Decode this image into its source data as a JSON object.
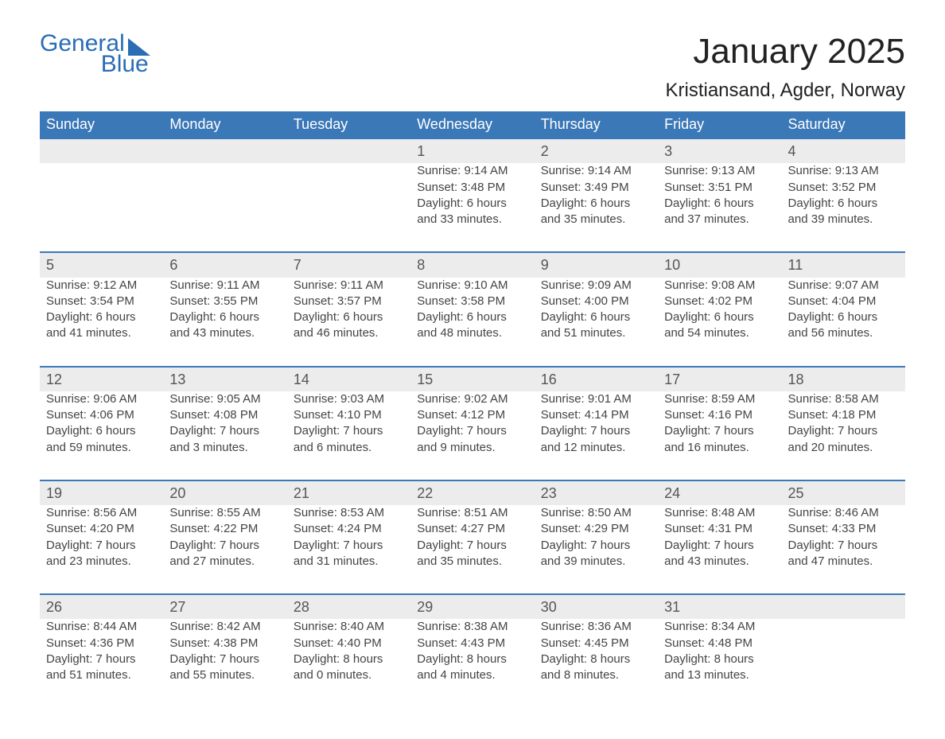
{
  "brand": {
    "name_part1": "General",
    "name_part2": "Blue",
    "brand_color": "#2a6db5"
  },
  "title": "January 2025",
  "location": "Kristiansand, Agder, Norway",
  "colors": {
    "header_bg": "#3b78b8",
    "header_text": "#ffffff",
    "daynum_bg": "#ececec",
    "rule": "#3b78b8",
    "body_text": "#444444",
    "page_bg": "#ffffff"
  },
  "day_headers": [
    "Sunday",
    "Monday",
    "Tuesday",
    "Wednesday",
    "Thursday",
    "Friday",
    "Saturday"
  ],
  "weeks": [
    [
      null,
      null,
      null,
      {
        "n": "1",
        "sunrise": "Sunrise: 9:14 AM",
        "sunset": "Sunset: 3:48 PM",
        "dl1": "Daylight: 6 hours",
        "dl2": "and 33 minutes."
      },
      {
        "n": "2",
        "sunrise": "Sunrise: 9:14 AM",
        "sunset": "Sunset: 3:49 PM",
        "dl1": "Daylight: 6 hours",
        "dl2": "and 35 minutes."
      },
      {
        "n": "3",
        "sunrise": "Sunrise: 9:13 AM",
        "sunset": "Sunset: 3:51 PM",
        "dl1": "Daylight: 6 hours",
        "dl2": "and 37 minutes."
      },
      {
        "n": "4",
        "sunrise": "Sunrise: 9:13 AM",
        "sunset": "Sunset: 3:52 PM",
        "dl1": "Daylight: 6 hours",
        "dl2": "and 39 minutes."
      }
    ],
    [
      {
        "n": "5",
        "sunrise": "Sunrise: 9:12 AM",
        "sunset": "Sunset: 3:54 PM",
        "dl1": "Daylight: 6 hours",
        "dl2": "and 41 minutes."
      },
      {
        "n": "6",
        "sunrise": "Sunrise: 9:11 AM",
        "sunset": "Sunset: 3:55 PM",
        "dl1": "Daylight: 6 hours",
        "dl2": "and 43 minutes."
      },
      {
        "n": "7",
        "sunrise": "Sunrise: 9:11 AM",
        "sunset": "Sunset: 3:57 PM",
        "dl1": "Daylight: 6 hours",
        "dl2": "and 46 minutes."
      },
      {
        "n": "8",
        "sunrise": "Sunrise: 9:10 AM",
        "sunset": "Sunset: 3:58 PM",
        "dl1": "Daylight: 6 hours",
        "dl2": "and 48 minutes."
      },
      {
        "n": "9",
        "sunrise": "Sunrise: 9:09 AM",
        "sunset": "Sunset: 4:00 PM",
        "dl1": "Daylight: 6 hours",
        "dl2": "and 51 minutes."
      },
      {
        "n": "10",
        "sunrise": "Sunrise: 9:08 AM",
        "sunset": "Sunset: 4:02 PM",
        "dl1": "Daylight: 6 hours",
        "dl2": "and 54 minutes."
      },
      {
        "n": "11",
        "sunrise": "Sunrise: 9:07 AM",
        "sunset": "Sunset: 4:04 PM",
        "dl1": "Daylight: 6 hours",
        "dl2": "and 56 minutes."
      }
    ],
    [
      {
        "n": "12",
        "sunrise": "Sunrise: 9:06 AM",
        "sunset": "Sunset: 4:06 PM",
        "dl1": "Daylight: 6 hours",
        "dl2": "and 59 minutes."
      },
      {
        "n": "13",
        "sunrise": "Sunrise: 9:05 AM",
        "sunset": "Sunset: 4:08 PM",
        "dl1": "Daylight: 7 hours",
        "dl2": "and 3 minutes."
      },
      {
        "n": "14",
        "sunrise": "Sunrise: 9:03 AM",
        "sunset": "Sunset: 4:10 PM",
        "dl1": "Daylight: 7 hours",
        "dl2": "and 6 minutes."
      },
      {
        "n": "15",
        "sunrise": "Sunrise: 9:02 AM",
        "sunset": "Sunset: 4:12 PM",
        "dl1": "Daylight: 7 hours",
        "dl2": "and 9 minutes."
      },
      {
        "n": "16",
        "sunrise": "Sunrise: 9:01 AM",
        "sunset": "Sunset: 4:14 PM",
        "dl1": "Daylight: 7 hours",
        "dl2": "and 12 minutes."
      },
      {
        "n": "17",
        "sunrise": "Sunrise: 8:59 AM",
        "sunset": "Sunset: 4:16 PM",
        "dl1": "Daylight: 7 hours",
        "dl2": "and 16 minutes."
      },
      {
        "n": "18",
        "sunrise": "Sunrise: 8:58 AM",
        "sunset": "Sunset: 4:18 PM",
        "dl1": "Daylight: 7 hours",
        "dl2": "and 20 minutes."
      }
    ],
    [
      {
        "n": "19",
        "sunrise": "Sunrise: 8:56 AM",
        "sunset": "Sunset: 4:20 PM",
        "dl1": "Daylight: 7 hours",
        "dl2": "and 23 minutes."
      },
      {
        "n": "20",
        "sunrise": "Sunrise: 8:55 AM",
        "sunset": "Sunset: 4:22 PM",
        "dl1": "Daylight: 7 hours",
        "dl2": "and 27 minutes."
      },
      {
        "n": "21",
        "sunrise": "Sunrise: 8:53 AM",
        "sunset": "Sunset: 4:24 PM",
        "dl1": "Daylight: 7 hours",
        "dl2": "and 31 minutes."
      },
      {
        "n": "22",
        "sunrise": "Sunrise: 8:51 AM",
        "sunset": "Sunset: 4:27 PM",
        "dl1": "Daylight: 7 hours",
        "dl2": "and 35 minutes."
      },
      {
        "n": "23",
        "sunrise": "Sunrise: 8:50 AM",
        "sunset": "Sunset: 4:29 PM",
        "dl1": "Daylight: 7 hours",
        "dl2": "and 39 minutes."
      },
      {
        "n": "24",
        "sunrise": "Sunrise: 8:48 AM",
        "sunset": "Sunset: 4:31 PM",
        "dl1": "Daylight: 7 hours",
        "dl2": "and 43 minutes."
      },
      {
        "n": "25",
        "sunrise": "Sunrise: 8:46 AM",
        "sunset": "Sunset: 4:33 PM",
        "dl1": "Daylight: 7 hours",
        "dl2": "and 47 minutes."
      }
    ],
    [
      {
        "n": "26",
        "sunrise": "Sunrise: 8:44 AM",
        "sunset": "Sunset: 4:36 PM",
        "dl1": "Daylight: 7 hours",
        "dl2": "and 51 minutes."
      },
      {
        "n": "27",
        "sunrise": "Sunrise: 8:42 AM",
        "sunset": "Sunset: 4:38 PM",
        "dl1": "Daylight: 7 hours",
        "dl2": "and 55 minutes."
      },
      {
        "n": "28",
        "sunrise": "Sunrise: 8:40 AM",
        "sunset": "Sunset: 4:40 PM",
        "dl1": "Daylight: 8 hours",
        "dl2": "and 0 minutes."
      },
      {
        "n": "29",
        "sunrise": "Sunrise: 8:38 AM",
        "sunset": "Sunset: 4:43 PM",
        "dl1": "Daylight: 8 hours",
        "dl2": "and 4 minutes."
      },
      {
        "n": "30",
        "sunrise": "Sunrise: 8:36 AM",
        "sunset": "Sunset: 4:45 PM",
        "dl1": "Daylight: 8 hours",
        "dl2": "and 8 minutes."
      },
      {
        "n": "31",
        "sunrise": "Sunrise: 8:34 AM",
        "sunset": "Sunset: 4:48 PM",
        "dl1": "Daylight: 8 hours",
        "dl2": "and 13 minutes."
      },
      null
    ]
  ]
}
